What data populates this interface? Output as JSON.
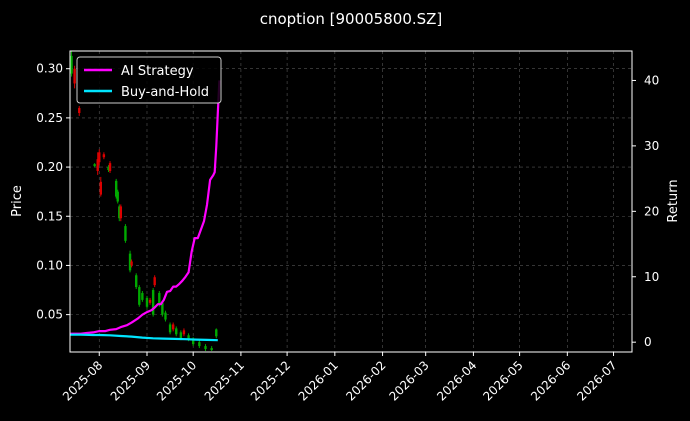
{
  "chart_data": {
    "type": "line",
    "title": "cnoption [90005800.SZ]",
    "ylabel": "Price",
    "y2label": "Return",
    "ylim": [
      0.012,
      0.318
    ],
    "y2lim": [
      -1.5,
      44.5
    ],
    "xlim": [
      "2025-07-13",
      "2026-07-13"
    ],
    "grid": true,
    "legend_position": "top-left",
    "x_ticks": [
      "2025-08",
      "2025-09",
      "2025-10",
      "2025-11",
      "2025-12",
      "2026-01",
      "2026-02",
      "2026-03",
      "2026-04",
      "2026-05",
      "2026-06",
      "2026-07"
    ],
    "y_ticks": [
      "0.05",
      "0.10",
      "0.15",
      "0.20",
      "0.25",
      "0.30"
    ],
    "y2_ticks": [
      "0",
      "10",
      "20",
      "30",
      "40"
    ],
    "legend": [
      "AI Strategy",
      "Buy-and-Hold"
    ],
    "colors": {
      "background": "#000000",
      "ai_strategy": "#ff00ff",
      "buy_and_hold": "#00e5ff",
      "up": "#00aa00",
      "down": "#dd0000",
      "grid": "#555555"
    },
    "series": [
      {
        "name": "AI Strategy",
        "axis": "right",
        "x": [
          "2025-07-13",
          "2025-07-20",
          "2025-07-24",
          "2025-07-28",
          "2025-08-01",
          "2025-08-05",
          "2025-08-08",
          "2025-08-12",
          "2025-08-15",
          "2025-08-19",
          "2025-08-22",
          "2025-08-26",
          "2025-08-29",
          "2025-09-01",
          "2025-09-04",
          "2025-09-06",
          "2025-09-08",
          "2025-09-10",
          "2025-09-12",
          "2025-09-14",
          "2025-09-16",
          "2025-09-18",
          "2025-09-20",
          "2025-09-22",
          "2025-09-24",
          "2025-09-26",
          "2025-09-28",
          "2025-09-30",
          "2025-10-02",
          "2025-10-04",
          "2025-10-06",
          "2025-10-08",
          "2025-10-10",
          "2025-10-12",
          "2025-10-14",
          "2025-10-15",
          "2025-10-16",
          "2025-10-17",
          "2025-10-18"
        ],
        "values": [
          1.3,
          1.3,
          1.4,
          1.5,
          1.7,
          1.7,
          1.9,
          2.0,
          2.3,
          2.6,
          3.0,
          3.6,
          4.2,
          4.6,
          4.9,
          5.3,
          5.8,
          5.8,
          6.5,
          7.7,
          7.8,
          8.5,
          8.5,
          8.9,
          9.4,
          10.0,
          10.7,
          13.8,
          15.9,
          15.9,
          17.2,
          18.5,
          21.0,
          24.8,
          25.5,
          26.0,
          30.0,
          35.0,
          40.0
        ]
      },
      {
        "name": "Buy-and-Hold",
        "axis": "right",
        "x": [
          "2025-07-13",
          "2025-07-20",
          "2025-07-28",
          "2025-08-01",
          "2025-08-08",
          "2025-08-15",
          "2025-08-22",
          "2025-08-29",
          "2025-09-05",
          "2025-09-12",
          "2025-09-19",
          "2025-09-26",
          "2025-10-03",
          "2025-10-10",
          "2025-10-17"
        ],
        "values": [
          1.15,
          1.15,
          1.1,
          1.1,
          1.05,
          0.95,
          0.85,
          0.7,
          0.6,
          0.55,
          0.5,
          0.45,
          0.4,
          0.35,
          0.3
        ]
      }
    ],
    "candles": [
      {
        "x": "2025-07-14",
        "open": 0.295,
        "close": 0.313,
        "high": 0.318,
        "low": 0.292
      },
      {
        "x": "2025-07-16",
        "open": 0.3,
        "close": 0.285,
        "high": 0.303,
        "low": 0.28
      },
      {
        "x": "2025-07-19",
        "open": 0.26,
        "close": 0.255,
        "high": 0.262,
        "low": 0.252
      },
      {
        "x": "2025-07-29",
        "open": 0.201,
        "close": 0.203,
        "high": 0.204,
        "low": 0.2
      },
      {
        "x": "2025-07-31",
        "open": 0.208,
        "close": 0.196,
        "high": 0.215,
        "low": 0.192
      },
      {
        "x": "2025-08-01",
        "open": 0.215,
        "close": 0.205,
        "high": 0.218,
        "low": 0.202
      },
      {
        "x": "2025-08-02",
        "open": 0.185,
        "close": 0.172,
        "high": 0.19,
        "low": 0.17
      },
      {
        "x": "2025-08-04",
        "open": 0.213,
        "close": 0.21,
        "high": 0.215,
        "low": 0.208
      },
      {
        "x": "2025-08-07",
        "open": 0.197,
        "close": 0.2,
        "high": 0.202,
        "low": 0.195
      },
      {
        "x": "2025-08-08",
        "open": 0.204,
        "close": 0.196,
        "high": 0.206,
        "low": 0.194
      },
      {
        "x": "2025-08-12",
        "open": 0.17,
        "close": 0.186,
        "high": 0.188,
        "low": 0.168
      },
      {
        "x": "2025-08-13",
        "open": 0.165,
        "close": 0.175,
        "high": 0.177,
        "low": 0.163
      },
      {
        "x": "2025-08-14",
        "open": 0.148,
        "close": 0.16,
        "high": 0.162,
        "low": 0.145
      },
      {
        "x": "2025-08-15",
        "open": 0.16,
        "close": 0.148,
        "high": 0.162,
        "low": 0.145
      },
      {
        "x": "2025-08-18",
        "open": 0.125,
        "close": 0.14,
        "high": 0.142,
        "low": 0.123
      },
      {
        "x": "2025-08-21",
        "open": 0.095,
        "close": 0.112,
        "high": 0.115,
        "low": 0.093
      },
      {
        "x": "2025-08-22",
        "open": 0.104,
        "close": 0.1,
        "high": 0.106,
        "low": 0.098
      },
      {
        "x": "2025-08-25",
        "open": 0.078,
        "close": 0.09,
        "high": 0.092,
        "low": 0.076
      },
      {
        "x": "2025-08-27",
        "open": 0.06,
        "close": 0.078,
        "high": 0.08,
        "low": 0.058
      },
      {
        "x": "2025-08-29",
        "open": 0.065,
        "close": 0.072,
        "high": 0.074,
        "low": 0.063
      },
      {
        "x": "2025-09-01",
        "open": 0.058,
        "close": 0.067,
        "high": 0.069,
        "low": 0.056
      },
      {
        "x": "2025-09-03",
        "open": 0.065,
        "close": 0.062,
        "high": 0.067,
        "low": 0.06
      },
      {
        "x": "2025-09-05",
        "open": 0.05,
        "close": 0.075,
        "high": 0.077,
        "low": 0.048
      },
      {
        "x": "2025-09-06",
        "open": 0.088,
        "close": 0.08,
        "high": 0.09,
        "low": 0.078
      },
      {
        "x": "2025-09-09",
        "open": 0.06,
        "close": 0.072,
        "high": 0.074,
        "low": 0.058
      },
      {
        "x": "2025-09-11",
        "open": 0.05,
        "close": 0.062,
        "high": 0.064,
        "low": 0.048
      },
      {
        "x": "2025-09-13",
        "open": 0.045,
        "close": 0.052,
        "high": 0.054,
        "low": 0.043
      },
      {
        "x": "2025-09-16",
        "open": 0.032,
        "close": 0.04,
        "high": 0.042,
        "low": 0.03
      },
      {
        "x": "2025-09-18",
        "open": 0.04,
        "close": 0.035,
        "high": 0.042,
        "low": 0.033
      },
      {
        "x": "2025-09-20",
        "open": 0.03,
        "close": 0.036,
        "high": 0.038,
        "low": 0.028
      },
      {
        "x": "2025-09-23",
        "open": 0.026,
        "close": 0.032,
        "high": 0.034,
        "low": 0.024
      },
      {
        "x": "2025-09-25",
        "open": 0.034,
        "close": 0.03,
        "high": 0.036,
        "low": 0.028
      },
      {
        "x": "2025-09-28",
        "open": 0.025,
        "close": 0.029,
        "high": 0.031,
        "low": 0.023
      },
      {
        "x": "2025-10-01",
        "open": 0.02,
        "close": 0.025,
        "high": 0.027,
        "low": 0.018
      },
      {
        "x": "2025-10-05",
        "open": 0.018,
        "close": 0.022,
        "high": 0.024,
        "low": 0.016
      },
      {
        "x": "2025-10-09",
        "open": 0.015,
        "close": 0.018,
        "high": 0.02,
        "low": 0.013
      },
      {
        "x": "2025-10-13",
        "open": 0.014,
        "close": 0.016,
        "high": 0.018,
        "low": 0.013
      },
      {
        "x": "2025-10-16",
        "open": 0.028,
        "close": 0.035,
        "high": 0.036,
        "low": 0.026
      }
    ]
  }
}
